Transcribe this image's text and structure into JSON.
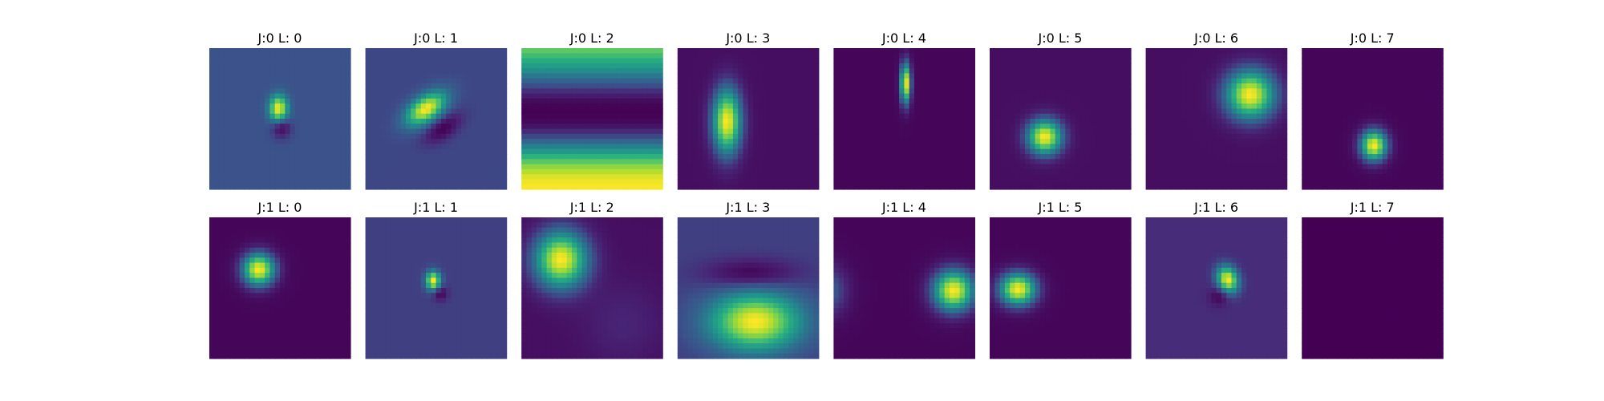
{
  "chart_data": {
    "type": "heatmap",
    "colormap": "viridis",
    "grid": false,
    "axes_visible": false,
    "rows": 2,
    "cols": 8,
    "panels": [
      {
        "title": "J:0 L: 0",
        "row": 0,
        "col": 0,
        "kind": "blob",
        "background": 0.25,
        "blobs": [
          {
            "cx": 0.49,
            "cy": 0.43,
            "sx": 0.045,
            "sy": 0.065,
            "amp": 0.75,
            "angle": 0
          },
          {
            "cx": 0.51,
            "cy": 0.56,
            "sx": 0.045,
            "sy": 0.05,
            "amp": -0.25,
            "angle": 0
          }
        ]
      },
      {
        "title": "J:0 L: 1",
        "row": 0,
        "col": 1,
        "kind": "blob",
        "background": 0.22,
        "blobs": [
          {
            "cx": 0.43,
            "cy": 0.43,
            "sx": 0.11,
            "sy": 0.06,
            "amp": 0.78,
            "angle": -35
          },
          {
            "cx": 0.55,
            "cy": 0.57,
            "sx": 0.1,
            "sy": 0.05,
            "amp": -0.22,
            "angle": -35
          }
        ]
      },
      {
        "title": "J:0 L: 2",
        "row": 0,
        "col": 2,
        "kind": "bands",
        "levels": [
          0.78,
          0.65,
          0.5,
          0.32,
          0.15,
          0.02,
          0.0,
          0.04,
          0.2,
          0.42,
          0.65,
          0.85,
          0.97,
          1.0
        ]
      },
      {
        "title": "J:0 L: 3",
        "row": 0,
        "col": 3,
        "kind": "blob",
        "background": 0.05,
        "blobs": [
          {
            "cx": 0.35,
            "cy": 0.52,
            "sx": 0.07,
            "sy": 0.16,
            "amp": 0.95,
            "angle": 0
          }
        ]
      },
      {
        "title": "J:0 L: 4",
        "row": 0,
        "col": 4,
        "kind": "blob",
        "background": 0.02,
        "blobs": [
          {
            "cx": 0.51,
            "cy": 0.25,
            "sx": 0.025,
            "sy": 0.1,
            "amp": 0.98,
            "angle": 0
          }
        ]
      },
      {
        "title": "J:0 L: 5",
        "row": 0,
        "col": 5,
        "kind": "blob",
        "background": 0.05,
        "blobs": [
          {
            "cx": 0.39,
            "cy": 0.63,
            "sx": 0.085,
            "sy": 0.085,
            "amp": 0.95,
            "angle": 0
          }
        ]
      },
      {
        "title": "J:0 L: 6",
        "row": 0,
        "col": 6,
        "kind": "blob",
        "background": 0.05,
        "blobs": [
          {
            "cx": 0.74,
            "cy": 0.33,
            "sx": 0.12,
            "sy": 0.12,
            "amp": 0.95,
            "angle": 0
          }
        ]
      },
      {
        "title": "J:0 L: 7",
        "row": 0,
        "col": 7,
        "kind": "blob",
        "background": 0.02,
        "blobs": [
          {
            "cx": 0.51,
            "cy": 0.69,
            "sx": 0.065,
            "sy": 0.075,
            "amp": 0.98,
            "angle": 0
          }
        ]
      },
      {
        "title": "J:1 L: 0",
        "row": 1,
        "col": 0,
        "kind": "blob",
        "background": 0.02,
        "blobs": [
          {
            "cx": 0.35,
            "cy": 0.37,
            "sx": 0.08,
            "sy": 0.08,
            "amp": 0.98,
            "angle": 0
          }
        ]
      },
      {
        "title": "J:1 L: 1",
        "row": 1,
        "col": 1,
        "kind": "blob",
        "background": 0.2,
        "blobs": [
          {
            "cx": 0.48,
            "cy": 0.45,
            "sx": 0.035,
            "sy": 0.045,
            "amp": 0.8,
            "angle": 0
          },
          {
            "cx": 0.53,
            "cy": 0.54,
            "sx": 0.035,
            "sy": 0.035,
            "amp": -0.2,
            "angle": 0
          }
        ]
      },
      {
        "title": "J:1 L: 2",
        "row": 1,
        "col": 2,
        "kind": "blob",
        "background": 0.05,
        "blobs": [
          {
            "cx": 0.28,
            "cy": 0.3,
            "sx": 0.13,
            "sy": 0.14,
            "amp": 0.95,
            "angle": 0
          },
          {
            "cx": 0.72,
            "cy": 0.75,
            "sx": 0.2,
            "sy": 0.2,
            "amp": 0.08,
            "angle": 0
          }
        ]
      },
      {
        "title": "J:1 L: 3",
        "row": 1,
        "col": 3,
        "kind": "blob",
        "background": 0.2,
        "blobs": [
          {
            "cx": 0.55,
            "cy": 0.74,
            "sx": 0.22,
            "sy": 0.14,
            "amp": 0.8,
            "angle": 0
          },
          {
            "cx": 0.52,
            "cy": 0.4,
            "sx": 0.22,
            "sy": 0.07,
            "amp": -0.2,
            "angle": 0
          }
        ]
      },
      {
        "title": "J:1 L: 4",
        "row": 1,
        "col": 4,
        "kind": "blob",
        "background": 0.02,
        "blobs": [
          {
            "cx": 0.85,
            "cy": 0.52,
            "sx": 0.1,
            "sy": 0.1,
            "amp": 0.98,
            "angle": 0
          },
          {
            "cx": -0.05,
            "cy": 0.52,
            "sx": 0.1,
            "sy": 0.12,
            "amp": 0.3,
            "angle": 0
          }
        ]
      },
      {
        "title": "J:1 L: 5",
        "row": 1,
        "col": 5,
        "kind": "blob",
        "background": 0.02,
        "blobs": [
          {
            "cx": 0.2,
            "cy": 0.51,
            "sx": 0.09,
            "sy": 0.08,
            "amp": 0.98,
            "angle": 0
          }
        ]
      },
      {
        "title": "J:1 L: 6",
        "row": 1,
        "col": 6,
        "kind": "blob",
        "background": 0.15,
        "blobs": [
          {
            "cx": 0.58,
            "cy": 0.44,
            "sx": 0.05,
            "sy": 0.065,
            "amp": 0.85,
            "angle": -20
          },
          {
            "cx": 0.52,
            "cy": 0.56,
            "sx": 0.045,
            "sy": 0.045,
            "amp": -0.15,
            "angle": 0
          }
        ]
      },
      {
        "title": "J:1 L: 7",
        "row": 1,
        "col": 7,
        "kind": "blob",
        "background": 0.0,
        "blobs": []
      }
    ]
  }
}
